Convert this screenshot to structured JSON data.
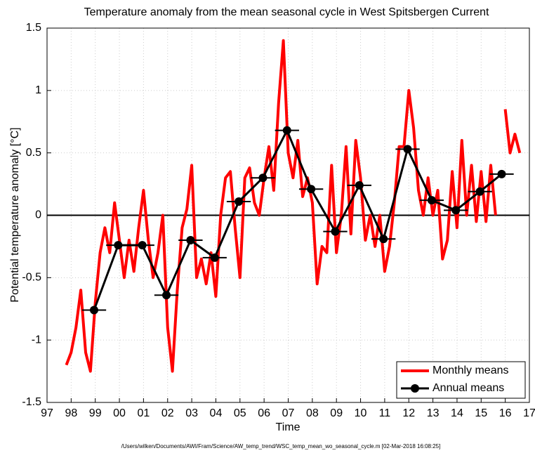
{
  "chart_data": {
    "type": "line",
    "title": "Temperature anomaly from the mean seasonal cycle in West Spitsbergen Current",
    "xlabel": "Time",
    "ylabel": "Potential temperature anomaly [°C]",
    "footer": "/Users/wilken/Documents/AWI/Fram/Science/AW_temp_trend/WSC_temp_mean_wo_seasonal_cycle.m [02-Mar-2018 16:08:25]",
    "xlim": [
      1997,
      2017
    ],
    "xticks": [
      {
        "value": 1997,
        "label": "97"
      },
      {
        "value": 1998,
        "label": "98"
      },
      {
        "value": 1999,
        "label": "99"
      },
      {
        "value": 2000,
        "label": "00"
      },
      {
        "value": 2001,
        "label": "01"
      },
      {
        "value": 2002,
        "label": "02"
      },
      {
        "value": 2003,
        "label": "03"
      },
      {
        "value": 2004,
        "label": "04"
      },
      {
        "value": 2005,
        "label": "05"
      },
      {
        "value": 2006,
        "label": "06"
      },
      {
        "value": 2007,
        "label": "07"
      },
      {
        "value": 2008,
        "label": "08"
      },
      {
        "value": 2009,
        "label": "09"
      },
      {
        "value": 2010,
        "label": "10"
      },
      {
        "value": 2011,
        "label": "11"
      },
      {
        "value": 2012,
        "label": "12"
      },
      {
        "value": 2013,
        "label": "13"
      },
      {
        "value": 2014,
        "label": "14"
      },
      {
        "value": 2015,
        "label": "15"
      },
      {
        "value": 2016,
        "label": "16"
      },
      {
        "value": 2017,
        "label": "17"
      }
    ],
    "ylim": [
      -1.5,
      1.5
    ],
    "yticks": [
      -1.5,
      -1,
      -0.5,
      0,
      0.5,
      1,
      1.5
    ],
    "grid": true,
    "reference_line": 0,
    "legend": "lower right",
    "series": [
      {
        "name": "Monthly means",
        "color": "#ff0000",
        "x": [
          1997.8,
          1998.0,
          1998.2,
          1998.4,
          1998.6,
          1998.8,
          1999.0,
          1999.2,
          1999.4,
          1999.6,
          1999.8,
          2000.0,
          2000.2,
          2000.4,
          2000.6,
          2000.8,
          2001.0,
          2001.2,
          2001.4,
          2001.6,
          2001.8,
          2002.0,
          2002.2,
          2002.4,
          2002.6,
          2002.8,
          2003.0,
          2003.2,
          2003.4,
          2003.6,
          2003.8,
          2004.0,
          2004.2,
          2004.4,
          2004.6,
          2004.8,
          2005.0,
          2005.2,
          2005.4,
          2005.6,
          2005.8,
          2006.0,
          2006.2,
          2006.4,
          2006.6,
          2006.8,
          2007.0,
          2007.2,
          2007.4,
          2007.6,
          2007.8,
          2008.0,
          2008.2,
          2008.4,
          2008.6,
          2008.8,
          2009.0,
          2009.2,
          2009.4,
          2009.6,
          2009.8,
          2010.0,
          2010.2,
          2010.4,
          2010.6,
          2010.8,
          2011.0,
          2011.2,
          2011.4,
          2011.6,
          2011.8,
          2012.0,
          2012.2,
          2012.4,
          2012.6,
          2012.8,
          2013.0,
          2013.2,
          2013.4,
          2013.6,
          2013.8,
          2014.0,
          2014.2,
          2014.4,
          2014.6,
          2014.8,
          2015.0,
          2015.2,
          2015.4,
          2015.6,
          2015.8,
          2016.0,
          2016.2,
          2016.4,
          2016.6
        ],
        "values": [
          -1.2,
          -1.1,
          -0.9,
          -0.6,
          -1.1,
          -1.25,
          -0.7,
          -0.3,
          -0.1,
          -0.3,
          0.1,
          -0.2,
          -0.5,
          -0.2,
          -0.45,
          -0.1,
          0.2,
          -0.2,
          -0.5,
          -0.3,
          0.0,
          -0.9,
          -1.25,
          -0.6,
          -0.1,
          0.05,
          0.4,
          -0.5,
          -0.35,
          -0.55,
          -0.3,
          -0.65,
          0.0,
          0.3,
          0.35,
          -0.1,
          -0.5,
          0.3,
          0.38,
          0.1,
          0.0,
          0.3,
          0.55,
          0.2,
          0.9,
          1.4,
          0.5,
          0.3,
          0.6,
          0.15,
          0.3,
          0.1,
          -0.55,
          -0.25,
          -0.3,
          0.4,
          -0.3,
          0.0,
          0.55,
          -0.15,
          0.6,
          0.3,
          -0.2,
          0.0,
          -0.25,
          0.0,
          -0.45,
          -0.25,
          0.1,
          0.55,
          0.55,
          1.0,
          0.7,
          0.2,
          0.0,
          0.3,
          0.0,
          0.2,
          -0.35,
          -0.2,
          0.35,
          -0.1,
          0.6,
          0.0,
          0.4,
          -0.05,
          0.35,
          -0.05,
          0.4,
          0.0,
          null,
          0.85,
          0.5,
          0.65,
          0.5
        ]
      },
      {
        "name": "Annual means",
        "color": "#000000",
        "x": [
          1998.95,
          1999.95,
          2000.95,
          2001.95,
          2002.95,
          2003.95,
          2004.95,
          2005.95,
          2006.95,
          2007.95,
          2008.95,
          2009.95,
          2010.95,
          2011.95,
          2012.95,
          2013.95,
          2014.95,
          2015.85
        ],
        "values": [
          -0.76,
          -0.24,
          -0.24,
          -0.64,
          -0.2,
          -0.34,
          0.11,
          0.3,
          0.68,
          0.21,
          -0.13,
          0.24,
          -0.19,
          0.53,
          0.12,
          0.04,
          0.19,
          0.33
        ]
      }
    ]
  }
}
